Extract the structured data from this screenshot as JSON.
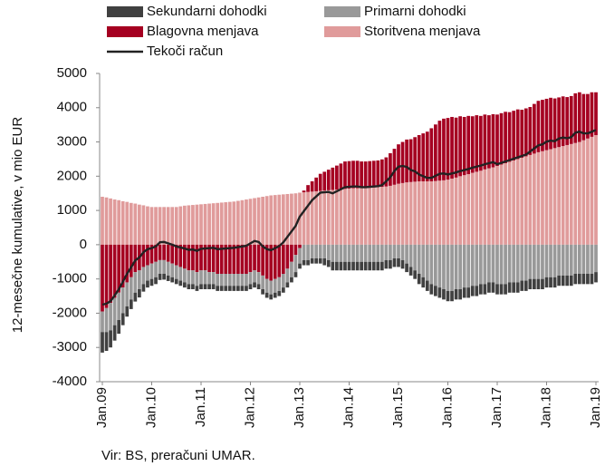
{
  "chart_data": {
    "type": "stacked_bar_line",
    "y_label": "12-mesečne kumulative, v mio EUR",
    "source": "Vir: BS, preračuni UMAR.",
    "ylim": [
      -4000,
      5000
    ],
    "yticks": [
      -4000,
      -3000,
      -2000,
      -1000,
      0,
      1000,
      2000,
      3000,
      4000,
      5000
    ],
    "categories": [
      "Jan.09",
      null,
      null,
      null,
      null,
      null,
      null,
      null,
      null,
      null,
      null,
      null,
      "Jan.10",
      null,
      null,
      null,
      null,
      null,
      null,
      null,
      null,
      null,
      null,
      null,
      "Jan.11",
      null,
      null,
      null,
      null,
      null,
      null,
      null,
      null,
      null,
      null,
      null,
      "Jan.12",
      null,
      null,
      null,
      null,
      null,
      null,
      null,
      null,
      null,
      null,
      null,
      "Jan.13",
      null,
      null,
      null,
      null,
      null,
      null,
      null,
      null,
      null,
      null,
      null,
      "Jan.14",
      null,
      null,
      null,
      null,
      null,
      null,
      null,
      null,
      null,
      null,
      null,
      "Jan.15",
      null,
      null,
      null,
      null,
      null,
      null,
      null,
      null,
      null,
      null,
      null,
      "Jan.16",
      null,
      null,
      null,
      null,
      null,
      null,
      null,
      null,
      null,
      null,
      null,
      "Jan.17",
      null,
      null,
      null,
      null,
      null,
      null,
      null,
      null,
      null,
      null,
      null,
      "Jan.18",
      null,
      null,
      null,
      null,
      null,
      null,
      null,
      null,
      null,
      null,
      null,
      "Jan.19"
    ],
    "series": [
      {
        "name": "Sekundarni dohodki",
        "color": "#404040",
        "values": [
          -600,
          -550,
          -500,
          -450,
          -400,
          -350,
          -300,
          -280,
          -260,
          -240,
          -220,
          -200,
          -200,
          -200,
          -180,
          -170,
          -160,
          -150,
          -150,
          -150,
          -150,
          -150,
          -150,
          -150,
          -150,
          -150,
          -150,
          -150,
          -150,
          -150,
          -150,
          -150,
          -150,
          -150,
          -150,
          -150,
          -150,
          -150,
          -150,
          -150,
          -150,
          -150,
          -150,
          -150,
          -150,
          -150,
          -150,
          -150,
          -150,
          -150,
          -150,
          -150,
          -150,
          -150,
          -200,
          -200,
          -250,
          -250,
          -250,
          -250,
          -250,
          -250,
          -250,
          -250,
          -250,
          -250,
          -250,
          -250,
          -250,
          -250,
          -250,
          -250,
          -250,
          -250,
          -250,
          -250,
          -250,
          -300,
          -300,
          -300,
          -300,
          -300,
          -300,
          -300,
          -300,
          -300,
          -300,
          -300,
          -300,
          -300,
          -300,
          -300,
          -300,
          -300,
          -300,
          -300,
          -300,
          -300,
          -300,
          -300,
          -300,
          -300,
          -300,
          -300,
          -300,
          -300,
          -300,
          -300,
          -300,
          -300,
          -300,
          -300,
          -300,
          -300,
          -300,
          -300,
          -300,
          -300,
          -300,
          -300,
          -300
        ]
      },
      {
        "name": "Primarni dohodki",
        "color": "#999999",
        "values": [
          -600,
          -700,
          -800,
          -800,
          -800,
          -750,
          -700,
          -650,
          -600,
          -550,
          -500,
          -450,
          -450,
          -450,
          -400,
          -400,
          -400,
          -400,
          -400,
          -400,
          -400,
          -400,
          -400,
          -400,
          -400,
          -400,
          -350,
          -350,
          -350,
          -350,
          -350,
          -350,
          -350,
          -350,
          -350,
          -350,
          -350,
          -350,
          -350,
          -400,
          -400,
          -400,
          -400,
          -400,
          -400,
          -400,
          -450,
          -500,
          -450,
          -450,
          -450,
          -400,
          -400,
          -400,
          -400,
          -450,
          -500,
          -500,
          -500,
          -500,
          -500,
          -500,
          -500,
          -500,
          -500,
          -500,
          -500,
          -500,
          -500,
          -450,
          -450,
          -400,
          -400,
          -450,
          -550,
          -650,
          -750,
          -850,
          -950,
          -1050,
          -1150,
          -1200,
          -1250,
          -1300,
          -1350,
          -1350,
          -1300,
          -1300,
          -1250,
          -1250,
          -1200,
          -1200,
          -1150,
          -1150,
          -1100,
          -1100,
          -1150,
          -1150,
          -1150,
          -1100,
          -1100,
          -1100,
          -1050,
          -1050,
          -1000,
          -1000,
          -1000,
          -1000,
          -950,
          -950,
          -950,
          -900,
          -900,
          -900,
          -900,
          -850,
          -850,
          -850,
          -850,
          -850,
          -800
        ]
      },
      {
        "name": "Blagovna menjava",
        "color": "#a50021",
        "values": [
          -1950,
          -1850,
          -1700,
          -1550,
          -1400,
          -1250,
          -1100,
          -950,
          -800,
          -750,
          -650,
          -600,
          -550,
          -500,
          -450,
          -450,
          -500,
          -550,
          -600,
          -650,
          -700,
          -750,
          -750,
          -800,
          -750,
          -750,
          -800,
          -800,
          -850,
          -850,
          -850,
          -850,
          -850,
          -850,
          -850,
          -850,
          -800,
          -750,
          -800,
          -900,
          -1000,
          -1050,
          -1000,
          -950,
          -850,
          -700,
          -500,
          -300,
          -100,
          50,
          200,
          300,
          400,
          500,
          550,
          600,
          650,
          700,
          750,
          800,
          800,
          800,
          800,
          780,
          780,
          780,
          780,
          780,
          800,
          850,
          950,
          1050,
          1150,
          1200,
          1250,
          1250,
          1300,
          1350,
          1400,
          1450,
          1550,
          1650,
          1750,
          1800,
          1800,
          1800,
          1750,
          1750,
          1700,
          1700,
          1650,
          1650,
          1600,
          1600,
          1550,
          1550,
          1500,
          1500,
          1500,
          1450,
          1450,
          1450,
          1400,
          1400,
          1400,
          1450,
          1500,
          1500,
          1500,
          1500,
          1450,
          1450,
          1450,
          1400,
          1400,
          1450,
          1450,
          1350,
          1300,
          1300,
          1250
        ]
      },
      {
        "name": "Storitvena menjava",
        "color": "#e09b9b",
        "values": [
          1400,
          1380,
          1350,
          1320,
          1300,
          1270,
          1250,
          1220,
          1200,
          1170,
          1150,
          1120,
          1100,
          1100,
          1100,
          1100,
          1100,
          1100,
          1100,
          1120,
          1140,
          1150,
          1160,
          1170,
          1180,
          1190,
          1200,
          1210,
          1220,
          1230,
          1240,
          1250,
          1260,
          1280,
          1300,
          1320,
          1340,
          1360,
          1380,
          1400,
          1420,
          1440,
          1450,
          1460,
          1470,
          1480,
          1490,
          1500,
          1520,
          1530,
          1540,
          1550,
          1560,
          1570,
          1580,
          1590,
          1600,
          1610,
          1620,
          1630,
          1640,
          1650,
          1650,
          1650,
          1650,
          1660,
          1670,
          1680,
          1690,
          1700,
          1720,
          1750,
          1780,
          1800,
          1820,
          1830,
          1840,
          1850,
          1850,
          1850,
          1850,
          1860,
          1870,
          1880,
          1900,
          1930,
          1960,
          2000,
          2030,
          2060,
          2100,
          2130,
          2160,
          2200,
          2230,
          2260,
          2300,
          2340,
          2380,
          2420,
          2460,
          2500,
          2540,
          2580,
          2620,
          2660,
          2700,
          2730,
          2760,
          2790,
          2820,
          2850,
          2880,
          2910,
          2940,
          2970,
          3000,
          3050,
          3100,
          3150,
          3200
        ]
      },
      {
        "name": "Tekoči račun",
        "color": "#222222",
        "type": "line",
        "values": [
          -1750,
          -1720,
          -1650,
          -1480,
          -1300,
          -1080,
          -850,
          -660,
          -460,
          -370,
          -220,
          -130,
          -100,
          -50,
          70,
          80,
          40,
          0,
          -50,
          -80,
          -110,
          -150,
          -140,
          -180,
          -120,
          -110,
          -100,
          -90,
          -130,
          -120,
          -110,
          -100,
          -90,
          -70,
          -50,
          -30,
          40,
          110,
          80,
          -50,
          -130,
          -160,
          -100,
          -40,
          70,
          230,
          390,
          550,
          820,
          980,
          1140,
          1300,
          1410,
          1520,
          1530,
          1540,
          1500,
          1560,
          1620,
          1680,
          1690,
          1700,
          1700,
          1680,
          1680,
          1690,
          1700,
          1710,
          1740,
          1850,
          1970,
          2150,
          2280,
          2300,
          2270,
          2180,
          2140,
          2050,
          2000,
          1950,
          1950,
          2010,
          2070,
          2080,
          2050,
          2080,
          2110,
          2150,
          2180,
          2210,
          2250,
          2280,
          2310,
          2350,
          2380,
          2410,
          2350,
          2390,
          2430,
          2470,
          2510,
          2550,
          2590,
          2630,
          2720,
          2810,
          2900,
          2930,
          3010,
          3040,
          3020,
          3100,
          3130,
          3110,
          3140,
          3270,
          3300,
          3250,
          3250,
          3300,
          3350
        ]
      }
    ]
  }
}
